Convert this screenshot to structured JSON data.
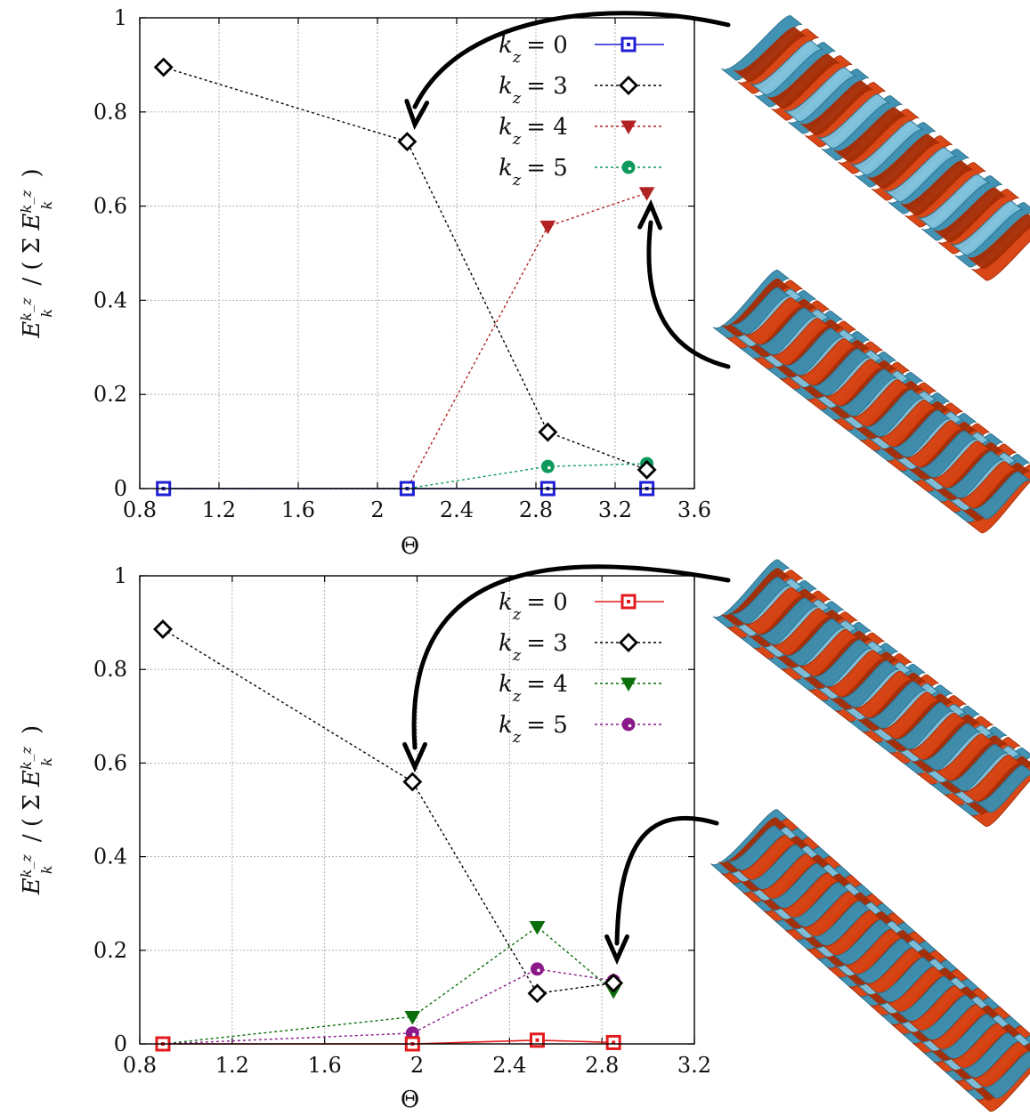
{
  "colors": {
    "helix_orange": "#d9400e",
    "helix_orange_dark": "#a62d06",
    "helix_blue": "#3b8fb0",
    "helix_blue_light": "#7cc0dc",
    "helix_blue_dark": "#2a6f8c"
  },
  "chart_data": [
    {
      "type": "line",
      "xlabel": "Θ",
      "ylabel": "E_k^{k_z} / ( Σ E_k^{k_z} )",
      "xlim": [
        0.8,
        3.6
      ],
      "ylim": [
        0,
        1
      ],
      "xticks": [
        "0.8",
        "1.2",
        "1.6",
        "2",
        "2.4",
        "2.8",
        "3.2",
        "3.6"
      ],
      "yticks": [
        "0",
        "0.2",
        "0.4",
        "0.6",
        "0.8",
        "1"
      ],
      "grid": true,
      "legend_position": "top-right",
      "series": [
        {
          "name": "k_z = 0",
          "color": "#1f1fd6",
          "marker": "square",
          "x": [
            0.92,
            2.15,
            2.86,
            3.36
          ],
          "values": [
            0.0,
            0.0,
            0.0,
            0.0
          ]
        },
        {
          "name": "k_z = 3",
          "color": "#000000",
          "marker": "diamond",
          "x": [
            0.92,
            2.15,
            2.86,
            3.36
          ],
          "values": [
            0.895,
            0.737,
            0.12,
            0.04
          ]
        },
        {
          "name": "k_z = 4",
          "color": "#b22222",
          "marker": "triangle-down",
          "x": [
            0.92,
            2.15,
            2.86,
            3.36
          ],
          "values": [
            0.0,
            0.0,
            0.557,
            0.628
          ]
        },
        {
          "name": "k_z = 5",
          "color": "#0e9a5c",
          "marker": "circle",
          "x": [
            0.92,
            2.15,
            2.86,
            3.36
          ],
          "values": [
            0.0,
            0.0,
            0.047,
            0.053
          ]
        }
      ],
      "arrows_to_points": [
        [
          2.15,
          0.737
        ],
        [
          3.36,
          0.628
        ]
      ]
    },
    {
      "type": "line",
      "xlabel": "Θ",
      "ylabel": "E_k^{k_z} / ( Σ E_k^{k_z} )",
      "xlim": [
        0.8,
        3.2
      ],
      "ylim": [
        0,
        1
      ],
      "xticks": [
        "0.8",
        "1.2",
        "1.6",
        "2",
        "2.4",
        "2.8",
        "3.2"
      ],
      "yticks": [
        "0",
        "0.2",
        "0.4",
        "0.6",
        "0.8",
        "1"
      ],
      "grid": true,
      "legend_position": "top-right",
      "series": [
        {
          "name": "k_z = 0",
          "color": "#e31a1c",
          "marker": "square",
          "x": [
            0.9,
            1.98,
            2.52,
            2.85
          ],
          "values": [
            0.0,
            0.0,
            0.008,
            0.003
          ]
        },
        {
          "name": "k_z = 3",
          "color": "#000000",
          "marker": "diamond",
          "x": [
            0.9,
            1.98,
            2.52,
            2.85
          ],
          "values": [
            0.886,
            0.56,
            0.108,
            0.13
          ]
        },
        {
          "name": "k_z = 4",
          "color": "#0a6e0a",
          "marker": "triangle-down",
          "x": [
            0.9,
            1.98,
            2.52,
            2.85
          ],
          "values": [
            0.0,
            0.058,
            0.25,
            0.113
          ]
        },
        {
          "name": "k_z = 5",
          "color": "#8a1a8a",
          "marker": "circle",
          "x": [
            0.9,
            1.98,
            2.52,
            2.85
          ],
          "values": [
            0.0,
            0.023,
            0.16,
            0.135
          ]
        }
      ],
      "arrows_to_points": [
        [
          1.98,
          0.56
        ],
        [
          2.85,
          0.135
        ]
      ]
    }
  ]
}
